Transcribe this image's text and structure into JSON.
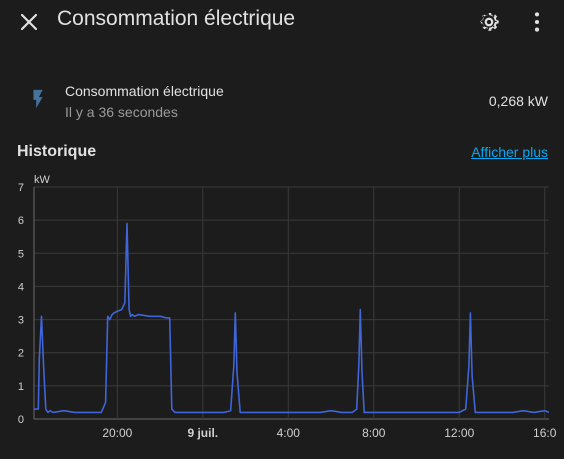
{
  "header": {
    "title": "Consommation électrique",
    "close_icon": "close-icon",
    "settings_icon": "gear-icon",
    "more_icon": "more-vertical-icon"
  },
  "entity": {
    "icon": "flash-icon",
    "name": "Consommation électrique",
    "last_changed": "Il y a 36 secondes",
    "state": "0,268 kW"
  },
  "history": {
    "title": "Historique",
    "show_more": "Afficher plus"
  },
  "colors": {
    "background": "#1c1c1c",
    "line": "#3f65d8",
    "link": "#03a9f4"
  },
  "chart_data": {
    "type": "line",
    "unit_label": "kW",
    "y_ticks": [
      0,
      1,
      2,
      3,
      4,
      5,
      6,
      7
    ],
    "ylim": [
      0,
      7
    ],
    "x_tick_labels": [
      "20:00",
      "9 juil.",
      "4:00",
      "8:00",
      "12:00",
      "16:0"
    ],
    "x_tick_hours": [
      20,
      24,
      28,
      32,
      36,
      40
    ],
    "xlim_hours": [
      16.1,
      40.2
    ],
    "grid": true,
    "series": [
      {
        "x_hours": [
          16.1,
          16.3,
          16.35,
          16.45,
          16.55,
          16.65,
          16.75,
          16.85,
          17.0,
          17.5,
          18.0,
          18.5,
          19.0,
          19.25,
          19.45,
          19.55,
          19.65,
          19.75,
          19.85,
          20.0,
          20.2,
          20.35,
          20.45,
          20.55,
          20.62,
          20.7,
          20.8,
          21.0,
          21.5,
          22.0,
          22.3,
          22.45,
          22.55,
          22.7,
          23.0,
          23.5,
          24.0,
          24.5,
          25.0,
          25.3,
          25.45,
          25.52,
          25.6,
          25.75,
          26.0,
          26.5,
          27.0,
          27.5,
          28.0,
          28.5,
          29.0,
          29.5,
          30.0,
          30.5,
          31.0,
          31.2,
          31.3,
          31.37,
          31.45,
          31.55,
          32.0,
          32.5,
          33.0,
          33.5,
          34.0,
          34.5,
          35.0,
          35.5,
          36.0,
          36.3,
          36.45,
          36.52,
          36.6,
          36.75,
          37.0,
          37.5,
          38.0,
          38.5,
          39.0,
          39.5,
          40.0,
          40.2
        ],
        "y": [
          0.3,
          0.3,
          1.8,
          3.1,
          1.6,
          0.3,
          0.2,
          0.25,
          0.2,
          0.25,
          0.2,
          0.2,
          0.2,
          0.2,
          0.5,
          3.1,
          3.0,
          3.15,
          3.2,
          3.25,
          3.3,
          3.5,
          5.9,
          3.3,
          3.1,
          3.15,
          3.1,
          3.15,
          3.1,
          3.1,
          3.05,
          3.05,
          0.3,
          0.2,
          0.2,
          0.2,
          0.2,
          0.2,
          0.2,
          0.25,
          1.6,
          3.2,
          1.4,
          0.2,
          0.2,
          0.2,
          0.2,
          0.2,
          0.2,
          0.2,
          0.2,
          0.2,
          0.25,
          0.2,
          0.2,
          0.3,
          1.6,
          3.3,
          1.4,
          0.2,
          0.2,
          0.2,
          0.2,
          0.2,
          0.2,
          0.2,
          0.2,
          0.2,
          0.2,
          0.3,
          1.6,
          3.2,
          1.3,
          0.2,
          0.2,
          0.2,
          0.2,
          0.2,
          0.25,
          0.2,
          0.25,
          0.2
        ]
      }
    ]
  }
}
